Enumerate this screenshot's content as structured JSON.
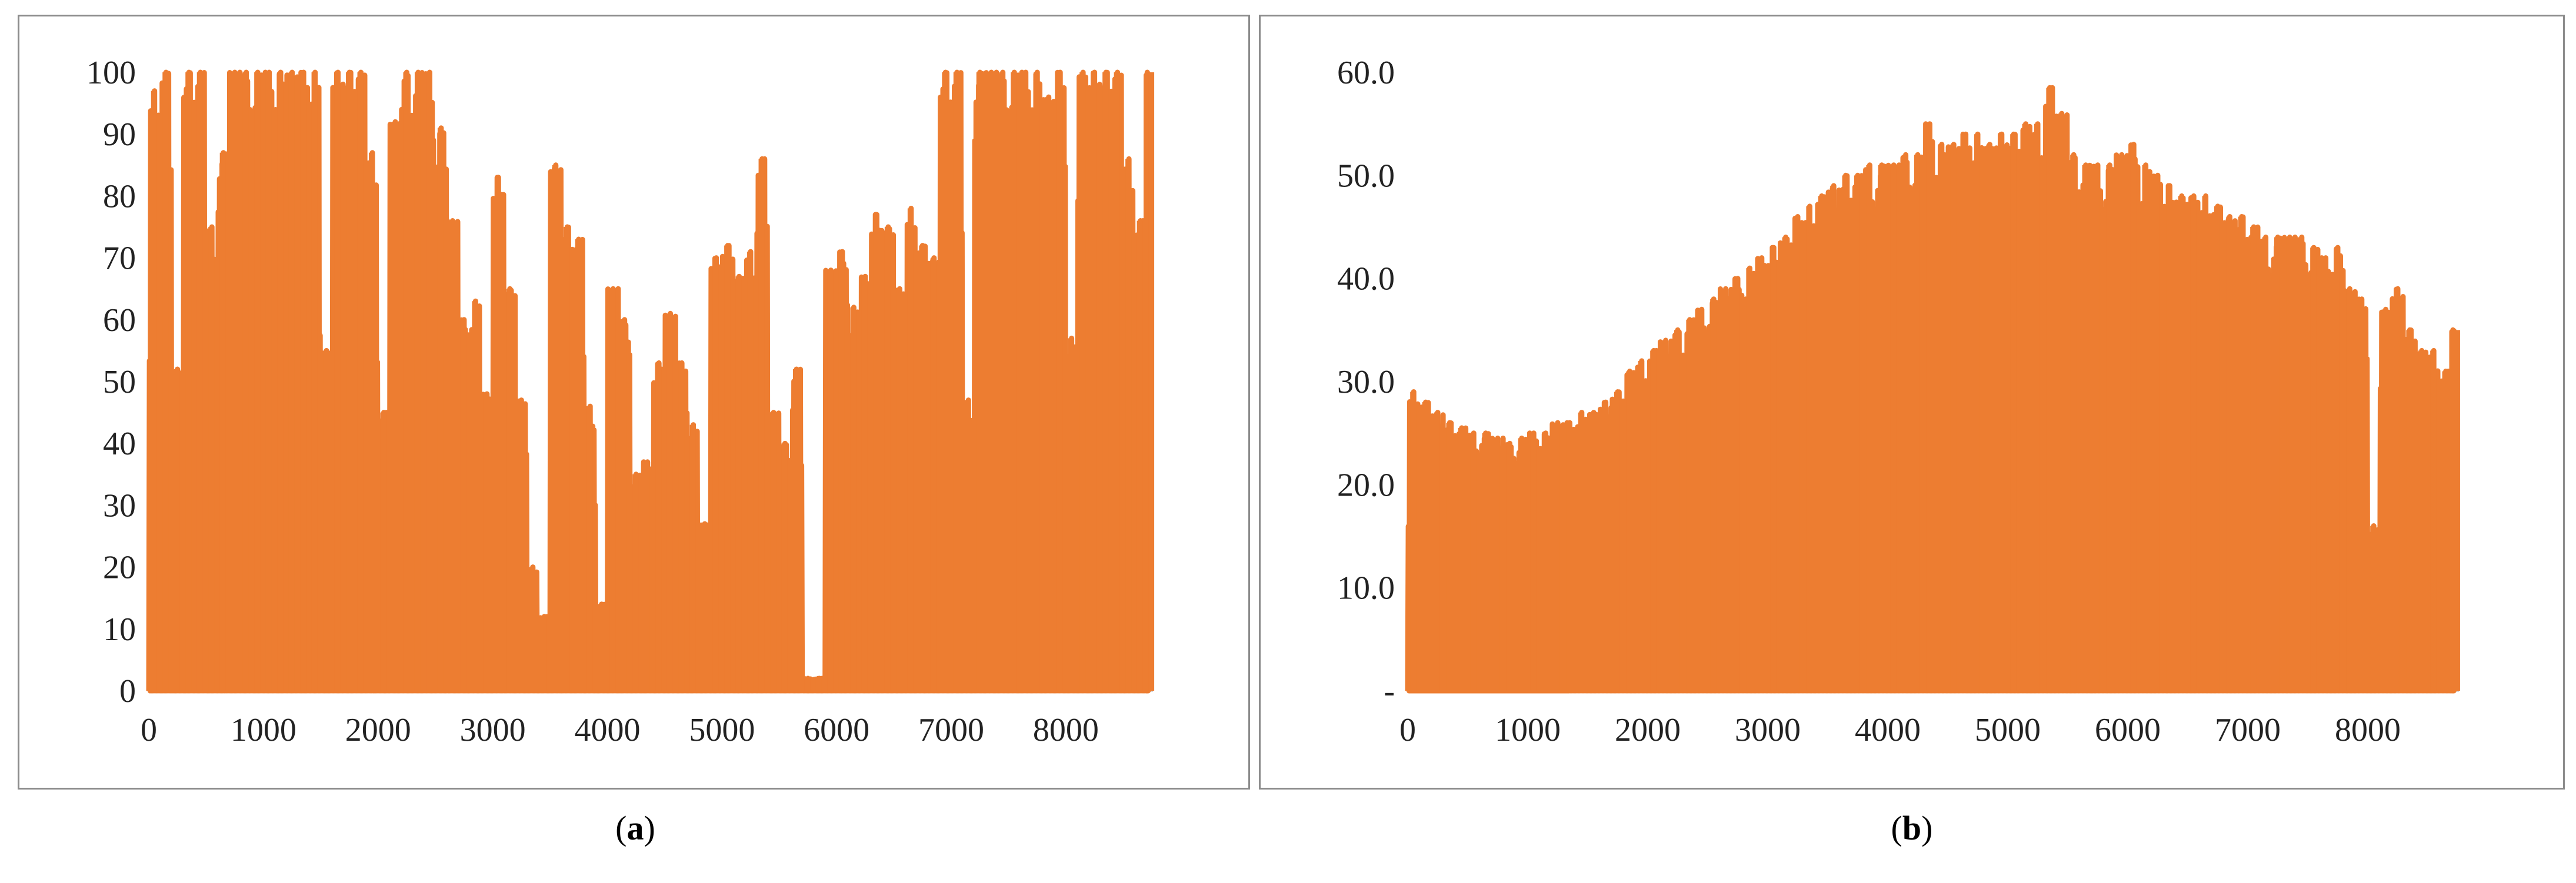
{
  "captions": {
    "a": {
      "open": "(",
      "letter": "a",
      "close": ")"
    },
    "b": {
      "open": "(",
      "letter": "b",
      "close": ")"
    }
  },
  "colors": {
    "series": "#ED7D31",
    "axis": "#bfbfbf",
    "frame": "#8c8c8c"
  },
  "chart_data": [
    {
      "panel": "a",
      "type": "line",
      "title": "",
      "xlabel": "",
      "ylabel": "",
      "xlim": [
        0,
        8760
      ],
      "ylim": [
        0,
        100
      ],
      "x_ticks": [
        0,
        1000,
        2000,
        3000,
        4000,
        5000,
        6000,
        7000,
        8000
      ],
      "x_tick_labels": [
        "0",
        "1000",
        "2000",
        "3000",
        "4000",
        "5000",
        "6000",
        "7000",
        "8000"
      ],
      "y_ticks": [
        0,
        10,
        20,
        30,
        40,
        50,
        60,
        70,
        80,
        90,
        100
      ],
      "y_tick_labels": [
        "0",
        "10",
        "20",
        "30",
        "40",
        "50",
        "60",
        "70",
        "80",
        "90",
        "100"
      ],
      "grid": false,
      "legend": "none",
      "series": [
        {
          "x": [
            0,
            100,
            200,
            300,
            400,
            500,
            600,
            700,
            800,
            900,
            1000,
            1100,
            1200,
            1300,
            1400,
            1500,
            1600,
            1700,
            1800,
            1900,
            2000,
            2100,
            2200,
            2300,
            2400,
            2500,
            2600,
            2700,
            2800,
            2900,
            3000,
            3100,
            3200,
            3300,
            3400,
            3500,
            3600,
            3700,
            3800,
            3900,
            4000,
            4100,
            4200,
            4300,
            4400,
            4500,
            4600,
            4700,
            4800,
            4900,
            5000,
            5100,
            5200,
            5300,
            5400,
            5500,
            5600,
            5700,
            5800,
            5900,
            6000,
            6100,
            6200,
            6300,
            6400,
            6500,
            6600,
            6700,
            6800,
            6900,
            7000,
            7100,
            7200,
            7300,
            7400,
            7500,
            7600,
            7700,
            7800,
            7900,
            8000,
            8100,
            8200,
            8300,
            8400,
            8500,
            8600,
            8700
          ],
          "values": [
            97,
            100,
            52,
            100,
            100,
            75,
            87,
            100,
            100,
            100,
            100,
            100,
            100,
            100,
            100,
            55,
            100,
            100,
            100,
            87,
            45,
            92,
            100,
            100,
            100,
            91,
            76,
            60,
            63,
            48,
            83,
            65,
            47,
            20,
            12,
            85,
            75,
            73,
            46,
            14,
            65,
            60,
            35,
            37,
            53,
            61,
            53,
            43,
            27,
            70,
            72,
            67,
            71,
            86,
            45,
            40,
            52,
            2,
            2,
            68,
            71,
            62,
            67,
            77,
            75,
            65,
            78,
            72,
            70,
            100,
            100,
            47,
            100,
            100,
            100,
            100,
            100,
            100,
            96,
            100,
            57,
            100,
            100,
            100,
            100,
            86,
            76,
            100
          ]
        }
      ]
    },
    {
      "panel": "b",
      "type": "line",
      "title": "",
      "xlabel": "",
      "ylabel": "",
      "xlim": [
        0,
        8760
      ],
      "ylim": [
        0,
        60
      ],
      "x_ticks": [
        0,
        1000,
        2000,
        3000,
        4000,
        5000,
        6000,
        7000,
        8000
      ],
      "x_tick_labels": [
        "0",
        "1000",
        "2000",
        "3000",
        "4000",
        "5000",
        "6000",
        "7000",
        "8000"
      ],
      "y_ticks": [
        0,
        10,
        20,
        30,
        40,
        50,
        60
      ],
      "y_tick_labels": [
        "-",
        "10.0",
        "20.0",
        "30.0",
        "40.0",
        "50.0",
        "60.0"
      ],
      "grid": false,
      "legend": "none",
      "series": [
        {
          "x": [
            0,
            100,
            200,
            300,
            400,
            500,
            600,
            700,
            800,
            900,
            1000,
            1100,
            1200,
            1300,
            1400,
            1500,
            1600,
            1700,
            1800,
            1900,
            2000,
            2100,
            2200,
            2300,
            2400,
            2500,
            2600,
            2700,
            2800,
            2900,
            3000,
            3100,
            3200,
            3300,
            3400,
            3500,
            3600,
            3700,
            3800,
            3900,
            4000,
            4100,
            4200,
            4300,
            4400,
            4500,
            4600,
            4700,
            4800,
            4900,
            5000,
            5100,
            5200,
            5300,
            5400,
            5500,
            5600,
            5700,
            5800,
            5900,
            6000,
            6100,
            6200,
            6300,
            6400,
            6500,
            6600,
            6700,
            6800,
            6900,
            7000,
            7100,
            7200,
            7300,
            7400,
            7500,
            7600,
            7700,
            7800,
            7900,
            8000,
            8100,
            8200,
            8300,
            8400,
            8500,
            8600,
            8700
          ],
          "values": [
            29,
            28,
            27,
            26,
            25.5,
            25,
            25,
            24.5,
            24,
            24.5,
            25,
            25,
            26,
            26,
            27,
            27,
            28,
            29,
            31,
            32,
            33,
            34,
            35,
            36,
            37,
            38,
            39,
            40,
            41,
            42,
            43,
            44,
            46,
            47,
            48,
            49,
            50,
            50,
            51,
            51,
            51,
            52,
            52,
            55,
            53,
            53,
            54,
            54,
            53,
            54,
            54,
            55,
            55,
            58.5,
            56,
            52,
            51,
            51,
            51,
            52,
            53,
            51,
            50,
            49,
            48,
            48,
            48,
            47,
            46,
            46,
            45,
            44,
            44,
            44,
            44,
            43,
            42,
            43,
            39,
            38,
            16,
            37,
            39,
            35,
            33,
            33,
            31,
            35
          ]
        }
      ]
    }
  ]
}
